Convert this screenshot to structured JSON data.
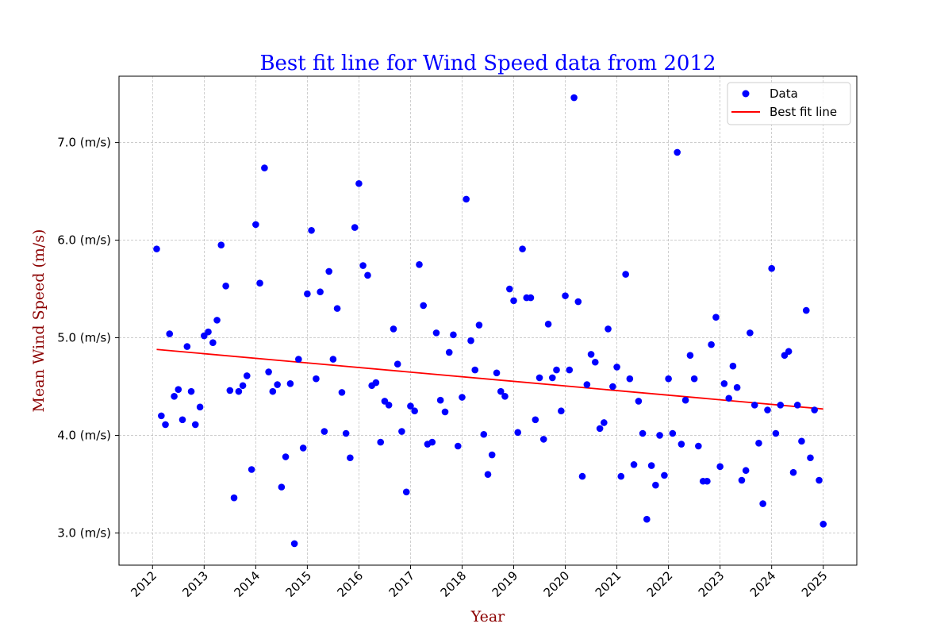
{
  "chart_data": {
    "type": "scatter",
    "title": "Best fit line for Wind Speed data from 2012",
    "xlabel": "Year",
    "ylabel": "Mean Wind Speed (m/s)",
    "xlim": [
      2011.35,
      2025.65
    ],
    "ylim": [
      2.67,
      7.68
    ],
    "grid": true,
    "legend_position": "top-right",
    "x_ticks": [
      2012,
      2013,
      2014,
      2015,
      2016,
      2017,
      2018,
      2019,
      2020,
      2021,
      2022,
      2023,
      2024,
      2025
    ],
    "x_tick_labels": [
      "2012",
      "2013",
      "2014",
      "2015",
      "2016",
      "2017",
      "2018",
      "2019",
      "2020",
      "2021",
      "2022",
      "2023",
      "2024",
      "2025"
    ],
    "y_ticks": [
      3.0,
      4.0,
      5.0,
      6.0,
      7.0
    ],
    "y_tick_labels": [
      "3.0 (m/s)",
      "4.0 (m/s)",
      "5.0 (m/s)",
      "6.0 (m/s)",
      "7.0 (m/s)"
    ],
    "colors": {
      "title": "#0000ff",
      "axis_label": "#8b0000",
      "data": "#0000ff",
      "fit_line": "#ff0000",
      "grid": "#b0b0b0"
    },
    "series": [
      {
        "name": "Data",
        "kind": "scatter",
        "x": [
          2012.08,
          2012.17,
          2012.25,
          2012.33,
          2012.42,
          2012.5,
          2012.58,
          2012.67,
          2012.75,
          2012.83,
          2012.92,
          2013.0,
          2013.08,
          2013.17,
          2013.25,
          2013.33,
          2013.42,
          2013.5,
          2013.58,
          2013.67,
          2013.75,
          2013.83,
          2013.92,
          2014.0,
          2014.08,
          2014.17,
          2014.25,
          2014.33,
          2014.42,
          2014.5,
          2014.58,
          2014.67,
          2014.75,
          2014.83,
          2014.92,
          2015.0,
          2015.08,
          2015.17,
          2015.25,
          2015.33,
          2015.42,
          2015.5,
          2015.58,
          2015.67,
          2015.75,
          2015.83,
          2015.92,
          2016.0,
          2016.08,
          2016.17,
          2016.25,
          2016.33,
          2016.42,
          2016.5,
          2016.58,
          2016.67,
          2016.75,
          2016.83,
          2016.92,
          2017.0,
          2017.08,
          2017.17,
          2017.25,
          2017.33,
          2017.42,
          2017.5,
          2017.58,
          2017.67,
          2017.75,
          2017.83,
          2017.92,
          2018.0,
          2018.08,
          2018.17,
          2018.25,
          2018.33,
          2018.42,
          2018.5,
          2018.58,
          2018.67,
          2018.75,
          2018.83,
          2018.92,
          2019.0,
          2019.08,
          2019.17,
          2019.25,
          2019.33,
          2019.42,
          2019.5,
          2019.58,
          2019.67,
          2019.75,
          2019.83,
          2019.92,
          2020.0,
          2020.08,
          2020.17,
          2020.25,
          2020.33,
          2020.42,
          2020.5,
          2020.58,
          2020.67,
          2020.75,
          2020.83,
          2020.92,
          2021.0,
          2021.08,
          2021.17,
          2021.25,
          2021.33,
          2021.42,
          2021.5,
          2021.58,
          2021.67,
          2021.75,
          2021.83,
          2021.92,
          2022.0,
          2022.08,
          2022.17,
          2022.25,
          2022.33,
          2022.42,
          2022.5,
          2022.58,
          2022.67,
          2022.75,
          2022.83,
          2022.92,
          2023.0,
          2023.08,
          2023.17,
          2023.25,
          2023.33,
          2023.42,
          2023.5,
          2023.58,
          2023.67,
          2023.75,
          2023.83,
          2023.92,
          2024.0,
          2024.08,
          2024.17,
          2024.25,
          2024.33,
          2024.42,
          2024.5,
          2024.58,
          2024.67,
          2024.75,
          2024.83,
          2024.92,
          2025.0
        ],
        "y": [
          5.91,
          4.2,
          4.11,
          5.04,
          4.4,
          4.47,
          4.16,
          4.91,
          4.45,
          4.11,
          4.29,
          5.02,
          5.06,
          4.95,
          5.18,
          5.95,
          5.53,
          4.46,
          3.36,
          4.45,
          4.51,
          4.61,
          3.65,
          6.16,
          5.56,
          6.74,
          4.65,
          4.45,
          4.52,
          3.47,
          3.78,
          4.53,
          2.89,
          4.78,
          3.87,
          5.45,
          6.1,
          4.58,
          5.47,
          4.04,
          5.68,
          4.78,
          5.3,
          4.44,
          4.02,
          3.77,
          6.13,
          6.58,
          5.74,
          5.64,
          4.51,
          4.54,
          3.93,
          4.35,
          4.31,
          5.09,
          4.73,
          4.04,
          3.42,
          4.3,
          4.25,
          5.75,
          5.33,
          3.91,
          3.93,
          5.05,
          4.36,
          4.24,
          4.85,
          5.03,
          3.89,
          4.39,
          6.42,
          4.97,
          4.67,
          5.13,
          4.01,
          3.6,
          3.8,
          4.64,
          4.45,
          4.4,
          5.5,
          5.38,
          4.03,
          5.91,
          5.41,
          5.41,
          4.16,
          4.59,
          3.96,
          5.14,
          4.59,
          4.67,
          4.25,
          5.43,
          4.67,
          7.46,
          5.37,
          3.58,
          4.52,
          4.83,
          4.75,
          4.07,
          4.13,
          5.09,
          4.5,
          4.7,
          3.58,
          5.65,
          4.58,
          3.7,
          4.35,
          4.02,
          3.14,
          3.69,
          3.49,
          4.0,
          3.59,
          4.58,
          4.02,
          6.9,
          3.91,
          4.36,
          4.82,
          4.58,
          3.89,
          3.53,
          3.53,
          4.93,
          5.21,
          3.68,
          4.53,
          4.38,
          4.71,
          4.49,
          3.54,
          3.64,
          5.05,
          4.31,
          3.92,
          3.3,
          4.26,
          5.71,
          4.02,
          4.31,
          4.82,
          4.86,
          3.62,
          4.31,
          3.94,
          5.28,
          3.77,
          4.26,
          3.54,
          3.09
        ]
      },
      {
        "name": "Best fit line",
        "kind": "line",
        "x": [
          2012.08,
          2025.0
        ],
        "y": [
          4.88,
          4.27
        ]
      }
    ]
  }
}
